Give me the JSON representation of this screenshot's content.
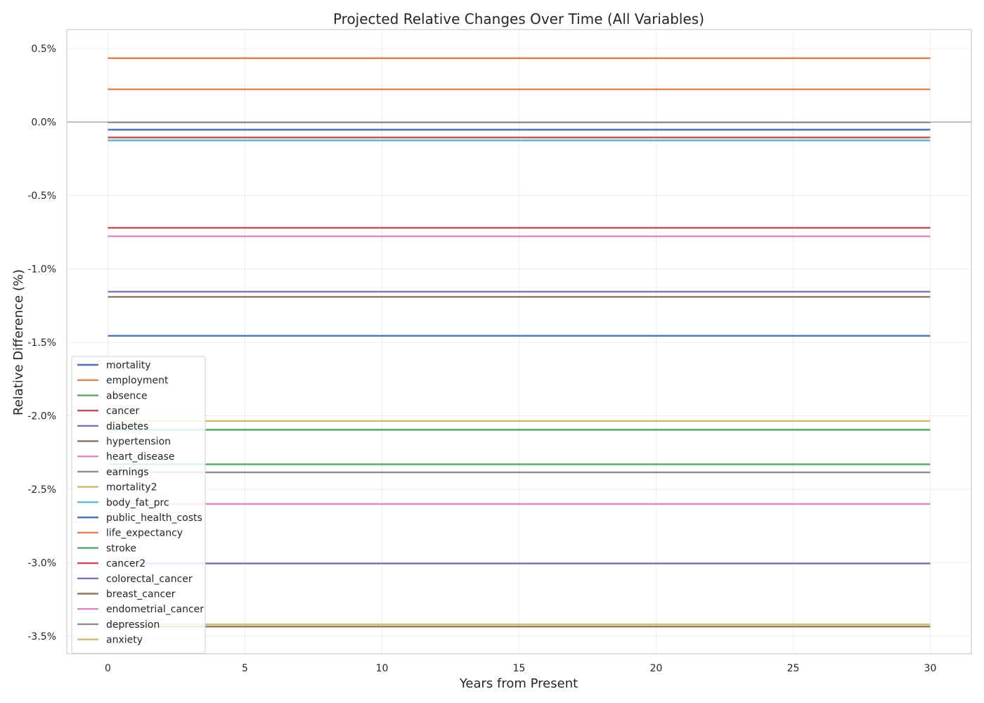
{
  "chart_data": {
    "type": "line",
    "title": "Projected Relative Changes Over Time (All Variables)",
    "xlabel": "Years from Present",
    "ylabel": "Relative Difference (%)",
    "xlim": [
      -1.5,
      31.5
    ],
    "ylim": [
      -3.62,
      0.63
    ],
    "x_ticks": [
      0,
      5,
      10,
      15,
      20,
      25,
      30
    ],
    "x_tick_labels": [
      "0",
      "5",
      "10",
      "15",
      "20",
      "25",
      "30"
    ],
    "y_ticks": [
      0.5,
      0.0,
      -0.5,
      -1.0,
      -1.5,
      -2.0,
      -2.5,
      -3.0,
      -3.5
    ],
    "y_tick_labels": [
      "0.5%",
      "0.0%",
      "-0.5%",
      "-1.0%",
      "-1.5%",
      "-2.0%",
      "-2.5%",
      "-3.0%",
      "-3.5%"
    ],
    "x": [
      0,
      30
    ],
    "grid": true,
    "reference_line_y": 0.0,
    "legend_position": "lower left",
    "series": [
      {
        "name": "mortality",
        "color": "#4c72b0",
        "values": [
          -1.455,
          -1.455
        ]
      },
      {
        "name": "employment",
        "color": "#dd8452",
        "values": [
          0.435,
          0.435
        ]
      },
      {
        "name": "absence",
        "color": "#55a868",
        "values": [
          -2.095,
          -2.095
        ]
      },
      {
        "name": "cancer",
        "color": "#c44e52",
        "values": [
          -0.72,
          -0.72
        ]
      },
      {
        "name": "diabetes",
        "color": "#8172b3",
        "values": [
          -1.155,
          -1.155
        ]
      },
      {
        "name": "hypertension",
        "color": "#937860",
        "values": [
          -1.19,
          -1.19
        ]
      },
      {
        "name": "heart_disease",
        "color": "#da8bc3",
        "values": [
          -0.778,
          -0.778
        ]
      },
      {
        "name": "earnings",
        "color": "#8c8c8c",
        "values": [
          -0.002,
          -0.002
        ]
      },
      {
        "name": "mortality2",
        "color": "#ccb974",
        "values": [
          -2.035,
          -2.035
        ]
      },
      {
        "name": "body_fat_prc",
        "color": "#64b5cd",
        "values": [
          -0.125,
          -0.125
        ]
      },
      {
        "name": "public_health_costs",
        "color": "#4c72b0",
        "values": [
          -0.052,
          -0.052
        ]
      },
      {
        "name": "life_expectancy",
        "color": "#dd8452",
        "values": [
          0.223,
          0.223
        ]
      },
      {
        "name": "stroke",
        "color": "#55a868",
        "values": [
          -2.33,
          -2.33
        ]
      },
      {
        "name": "cancer2",
        "color": "#c44e52",
        "values": [
          -0.105,
          -0.105
        ]
      },
      {
        "name": "colorectal_cancer",
        "color": "#8172b3",
        "values": [
          -3.005,
          -3.005
        ]
      },
      {
        "name": "breast_cancer",
        "color": "#937860",
        "values": [
          -3.435,
          -3.435
        ]
      },
      {
        "name": "endometrial_cancer",
        "color": "#da8bc3",
        "values": [
          -2.6,
          -2.6
        ]
      },
      {
        "name": "depression",
        "color": "#8c8c8c",
        "values": [
          -2.385,
          -2.385
        ]
      },
      {
        "name": "anxiety",
        "color": "#ccb974",
        "values": [
          -3.42,
          -3.42
        ]
      }
    ]
  }
}
